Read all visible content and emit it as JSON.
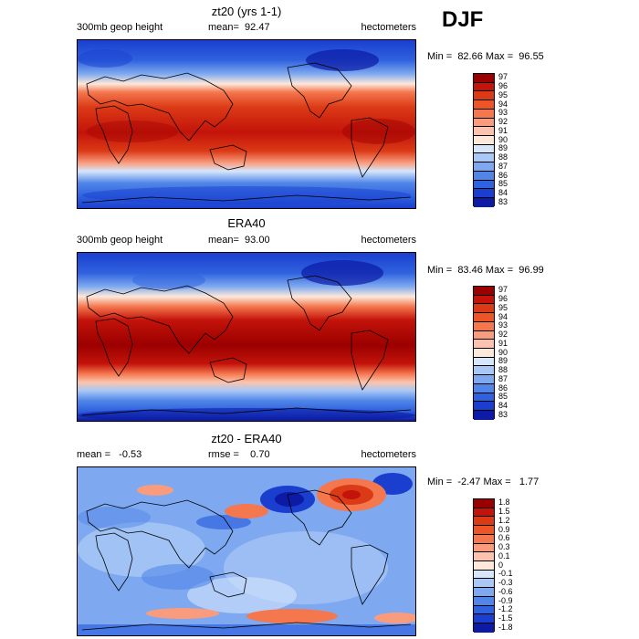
{
  "season_label": "DJF",
  "panels": [
    {
      "title": "zt20 (yrs 1-1)",
      "subtitle_left": "300mb geop height",
      "subtitle_mid": "mean=  92.47",
      "subtitle_right": "hectometers",
      "min_max": "Min =  82.66 Max =  96.55",
      "colorbar_labels": [
        "97",
        "96",
        "95",
        "94",
        "93",
        "92",
        "91",
        "90",
        "89",
        "88",
        "87",
        "86",
        "85",
        "84",
        "83"
      ],
      "colorbar_colors": [
        "#9b0000",
        "#c3130a",
        "#db3a16",
        "#ed5526",
        "#f4774e",
        "#f99c7e",
        "#fbc3ad",
        "#fde8da",
        "#d6e6fb",
        "#a9c8f6",
        "#7ea9f0",
        "#5186e8",
        "#2f62de",
        "#1a3fcf",
        "#0c1aa5"
      ]
    },
    {
      "title": "ERA40",
      "subtitle_left": "300mb geop height",
      "subtitle_mid": "mean=  93.00",
      "subtitle_right": "hectometers",
      "min_max": "Min =  83.46 Max =  96.99",
      "colorbar_labels": [
        "97",
        "96",
        "95",
        "94",
        "93",
        "92",
        "91",
        "90",
        "89",
        "88",
        "87",
        "86",
        "85",
        "84",
        "83"
      ],
      "colorbar_colors": [
        "#9b0000",
        "#c3130a",
        "#db3a16",
        "#ed5526",
        "#f4774e",
        "#f99c7e",
        "#fbc3ad",
        "#fde8da",
        "#d6e6fb",
        "#a9c8f6",
        "#7ea9f0",
        "#5186e8",
        "#2f62de",
        "#1a3fcf",
        "#0c1aa5"
      ]
    },
    {
      "title": "zt20 - ERA40",
      "subtitle_left": "mean =   -0.53",
      "subtitle_mid": "rmse =    0.70",
      "subtitle_right": "hectometers",
      "min_max": "Min =  -2.47 Max =   1.77",
      "colorbar_labels": [
        "1.8",
        "1.5",
        "1.2",
        "0.9",
        "0.6",
        "0.3",
        "0.1",
        "0",
        "-0.1",
        "-0.3",
        "-0.6",
        "-0.9",
        "-1.2",
        "-1.5",
        "-1.8"
      ],
      "colorbar_colors": [
        "#9b0000",
        "#c3130a",
        "#db3a16",
        "#ed5526",
        "#f4774e",
        "#f99c7e",
        "#fbc3ad",
        "#fde8da",
        "#d6e6fb",
        "#a9c8f6",
        "#7ea9f0",
        "#5186e8",
        "#2f62de",
        "#1a3fcf",
        "#0c1aa5"
      ]
    }
  ]
}
